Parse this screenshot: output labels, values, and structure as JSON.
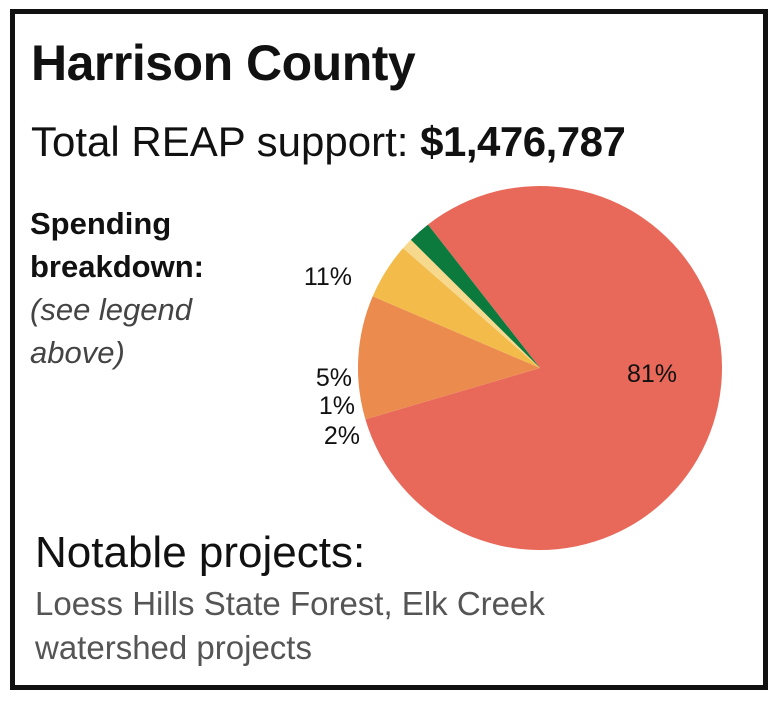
{
  "title": "Harrison County",
  "total": {
    "label": "Total REAP support: ",
    "amount": "$1,476,787"
  },
  "spending": {
    "label_line1": "Spending",
    "label_line2": "breakdown:",
    "note_line1": "(see legend",
    "note_line2": "above)"
  },
  "chart_data": {
    "type": "pie",
    "slices": [
      {
        "value": 81,
        "label": "81%",
        "color": "#e8695a"
      },
      {
        "value": 11,
        "label": "11%",
        "color": "#eb8b4e"
      },
      {
        "value": 5,
        "label": "5%",
        "color": "#f3bb4a"
      },
      {
        "value": 1,
        "label": "1%",
        "color": "#f7d98e"
      },
      {
        "value": 2,
        "label": "2%",
        "color": "#0b7a3c"
      }
    ]
  },
  "projects": {
    "heading": "Notable projects:",
    "line1": "Loess Hills State Forest, Elk Creek",
    "line2": "watershed projects"
  }
}
